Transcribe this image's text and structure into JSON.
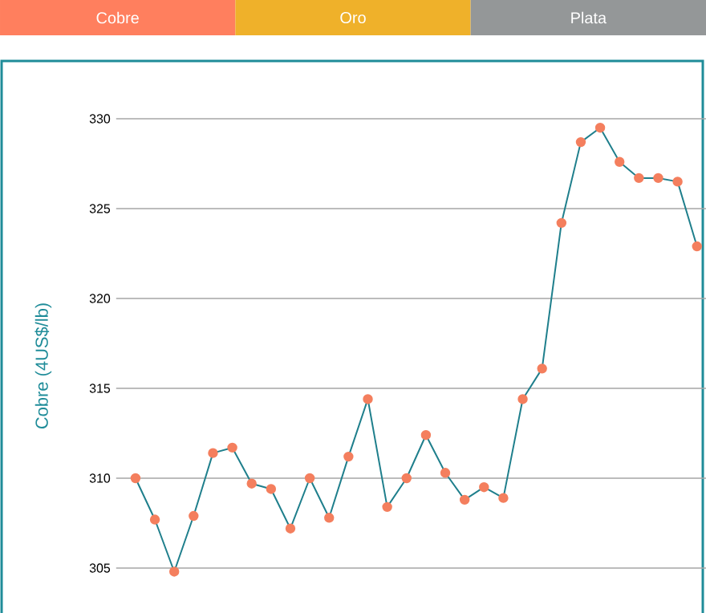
{
  "chart_data": {
    "type": "line",
    "annotations": [
      "Cobre",
      "Oro",
      "Plata"
    ],
    "ylabel": "Cobre (4US$/lb)",
    "categories": [
      null,
      null,
      null,
      null,
      null,
      null,
      null,
      null,
      null,
      null,
      null,
      null,
      null,
      null,
      null,
      null,
      null,
      null,
      null,
      null,
      null,
      null,
      null,
      null,
      null,
      null,
      null,
      null,
      null,
      null
    ],
    "series": [
      {
        "color": "#f47f5e",
        "values": [
          310.0,
          307.7,
          304.8,
          307.9,
          311.4,
          311.7,
          309.7,
          309.4,
          307.2,
          310.0,
          307.8,
          311.2,
          314.4,
          308.4,
          310.0,
          312.4,
          310.3,
          308.8,
          309.5,
          308.9,
          314.4,
          316.1,
          324.2,
          328.7,
          329.5,
          327.6,
          326.7,
          326.7,
          326.5,
          322.9
        ]
      }
    ],
    "ylim": [
      302.5,
      330
    ],
    "yticks": [
      305,
      310,
      315,
      320,
      325,
      330
    ],
    "grid": "y",
    "tick_labels": "y",
    "marker": "circle",
    "line_style": "solid"
  }
}
